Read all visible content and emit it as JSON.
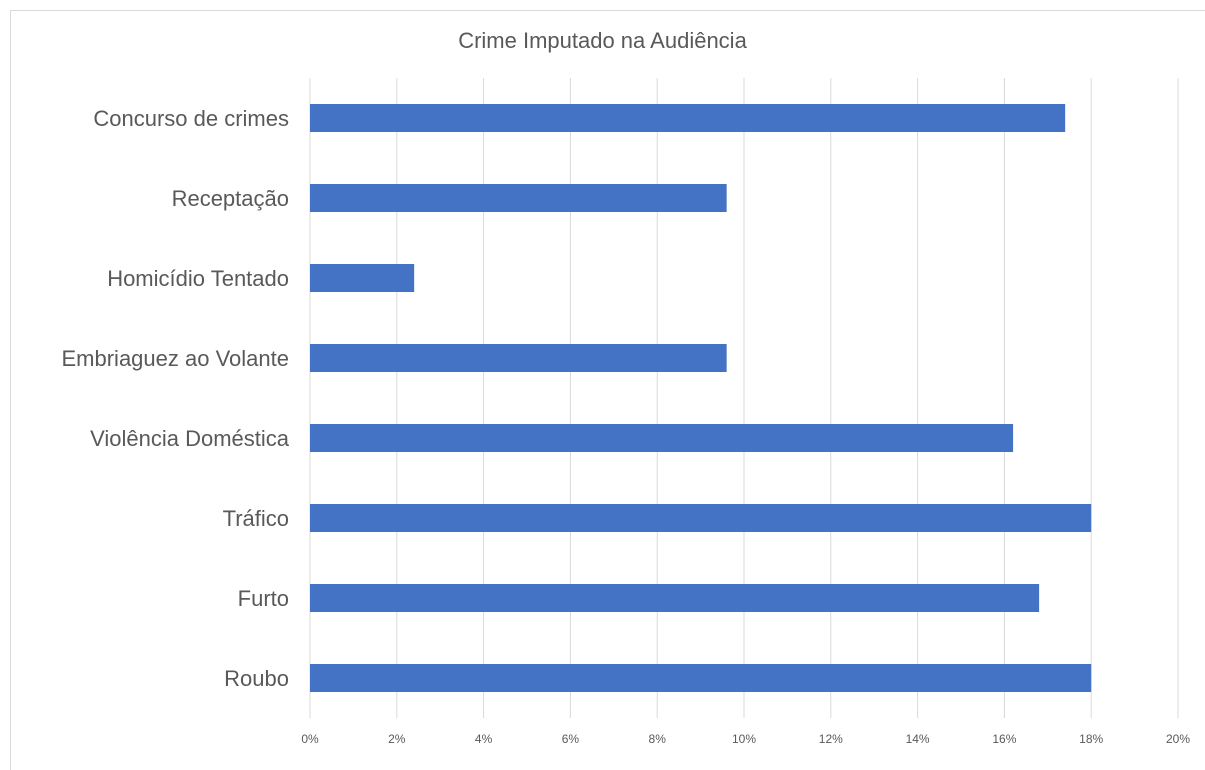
{
  "chart_data": {
    "type": "bar",
    "orientation": "horizontal",
    "title": "Crime Imputado na Audiência",
    "categories": [
      "Concurso de crimes",
      "Receptação",
      "Homicídio Tentado",
      "Embriaguez ao Volante",
      "Violência Doméstica",
      "Tráfico",
      "Furto",
      "Roubo"
    ],
    "values": [
      17.4,
      9.6,
      2.4,
      9.6,
      16.2,
      18.0,
      16.8,
      18.0
    ],
    "xlim": [
      0,
      20
    ],
    "x_ticks": [
      "0%",
      "2%",
      "4%",
      "6%",
      "8%",
      "10%",
      "12%",
      "14%",
      "16%",
      "18%",
      "20%"
    ],
    "bar_color": "#4472c4",
    "grid": true,
    "legend": "none"
  }
}
